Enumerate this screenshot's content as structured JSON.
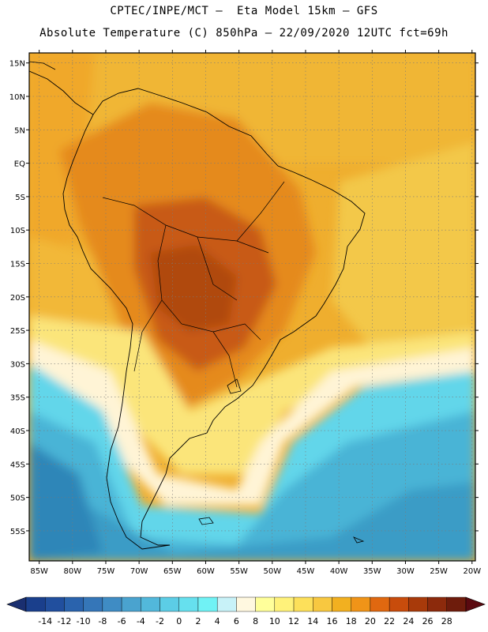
{
  "header": {
    "title_line1": "CPTEC/INPE/MCT –  Eta Model 15km – GFS",
    "title_line2": "Absolute Temperature (C) 850hPa – 22/09/2020 12UTC fct=69h"
  },
  "axes": {
    "lat_labels": [
      "15N",
      "10N",
      "5N",
      "EQ",
      "5S",
      "10S",
      "15S",
      "20S",
      "25S",
      "30S",
      "35S",
      "40S",
      "45S",
      "50S",
      "55S"
    ],
    "lat_values": [
      15,
      10,
      5,
      0,
      -5,
      -10,
      -15,
      -20,
      -25,
      -30,
      -35,
      -40,
      -45,
      -50,
      -55
    ],
    "lon_labels": [
      "85W",
      "80W",
      "75W",
      "70W",
      "65W",
      "60W",
      "55W",
      "50W",
      "45W",
      "40W",
      "35W",
      "30W",
      "25W",
      "20W"
    ],
    "lon_values": [
      -85,
      -80,
      -75,
      -70,
      -65,
      -60,
      -55,
      -50,
      -45,
      -40,
      -35,
      -30,
      -25,
      -20
    ]
  },
  "colorbar": {
    "labels": [
      "-14",
      "-12",
      "-10",
      "-8",
      "-6",
      "-4",
      "-2",
      "0",
      "2",
      "4",
      "6",
      "8",
      "10",
      "12",
      "14",
      "16",
      "18",
      "20",
      "22",
      "24",
      "26",
      "28"
    ],
    "colors": [
      "#1a3f8c",
      "#214f9e",
      "#2a63ad",
      "#3576b8",
      "#3f8cc4",
      "#4aa3cf",
      "#52b8db",
      "#5ccde6",
      "#66e0ee",
      "#70f2f5",
      "#c8f2f8",
      "#fff8e0",
      "#ffff9a",
      "#fff27a",
      "#fde05a",
      "#f8c840",
      "#f2b020",
      "#f09418",
      "#e06810",
      "#c84c0c",
      "#a83a0a",
      "#8c2a0c",
      "#6e1c0c"
    ],
    "under_color": "#1a2f70",
    "over_color": "#5a0a10"
  },
  "field_colors": {
    "deep_ocean_south": "#3fa6cc",
    "cold": "#5fcbe3",
    "cyan": "#6ee6f0",
    "pale": "#fff6d8",
    "yellow": "#fde880",
    "light_orange": "#f3c34a",
    "orange": "#ef9e26",
    "dark_orange": "#e0781a",
    "red_orange": "#c85a12",
    "hot": "#b04a0e"
  }
}
